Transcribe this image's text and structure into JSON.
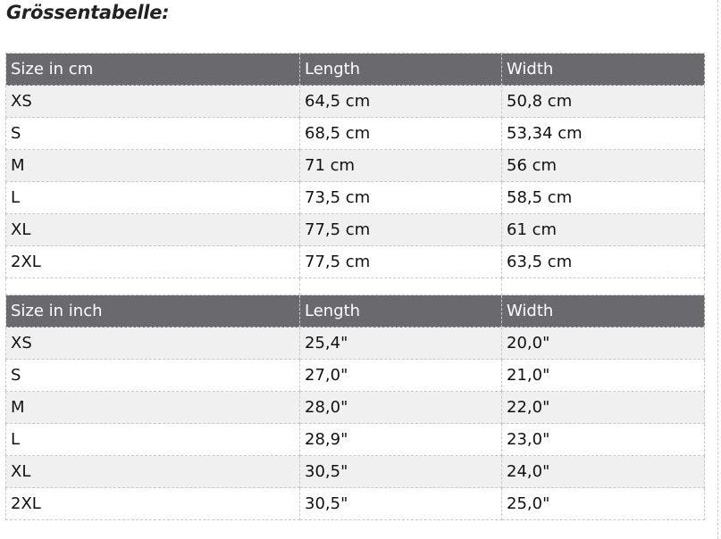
{
  "title": "Grössentabelle:",
  "tables": [
    {
      "headers": [
        "Size in cm",
        "Length",
        "Width"
      ],
      "rows": [
        [
          "XS",
          "64,5 cm",
          "50,8 cm"
        ],
        [
          "S",
          "68,5 cm",
          "53,34 cm"
        ],
        [
          "M",
          "71 cm",
          "56 cm"
        ],
        [
          "L",
          "73,5 cm",
          "58,5 cm"
        ],
        [
          "XL",
          "77,5 cm",
          "61 cm"
        ],
        [
          "2XL",
          "77,5 cm",
          "63,5 cm"
        ]
      ]
    },
    {
      "headers": [
        "Size in inch",
        "Length",
        "Width"
      ],
      "rows": [
        [
          "XS",
          "25,4\"",
          "20,0\""
        ],
        [
          "S",
          "27,0\"",
          "21,0\""
        ],
        [
          "M",
          "28,0\"",
          "22,0\""
        ],
        [
          "L",
          "28,9\"",
          "23,0\""
        ],
        [
          "XL",
          "30,5\"",
          "24,0\""
        ],
        [
          "2XL",
          "30,5\"",
          "25,0\""
        ]
      ]
    }
  ],
  "colors": {
    "header_bg": "#6a6a6e",
    "stripe_bg": "#f0f0f0"
  }
}
